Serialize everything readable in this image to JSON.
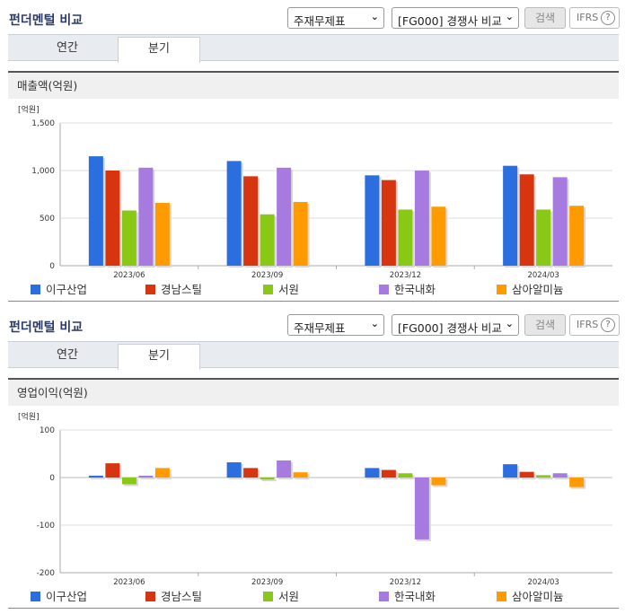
{
  "header": {
    "title": "펀더멘털 비교",
    "statement_select": "주재무제표",
    "compare_select": "[FG000] 경쟁사 비교",
    "search_label": "검색",
    "ifrs_label": "IFRS",
    "help_glyph": "?"
  },
  "tabs": [
    "연간",
    "분기"
  ],
  "active_tab": "분기",
  "colors": [
    "#2a6ee0",
    "#d6350f",
    "#8ac816",
    "#a77ae0",
    "#ff9a00"
  ],
  "chart_data": [
    {
      "type": "bar",
      "title": "매출액(억원)",
      "unit": "[억원]",
      "categories": [
        "2023/06",
        "2023/09",
        "2023/12",
        "2024/03"
      ],
      "series": [
        {
          "name": "이구산업",
          "values": [
            1150,
            1100,
            950,
            1050
          ]
        },
        {
          "name": "경남스틸",
          "values": [
            1000,
            940,
            900,
            960
          ]
        },
        {
          "name": "서원",
          "values": [
            580,
            540,
            590,
            590
          ]
        },
        {
          "name": "한국내화",
          "values": [
            1030,
            1030,
            1000,
            930
          ]
        },
        {
          "name": "삼아알미늄",
          "values": [
            660,
            670,
            620,
            630
          ]
        }
      ],
      "ylim": [
        0,
        1500
      ],
      "yticks": [
        "0",
        "500",
        "1,000",
        "1,500"
      ],
      "ytick_values": [
        0,
        500,
        1000,
        1500
      ],
      "grid": true,
      "legend": "bottom"
    },
    {
      "type": "bar",
      "title": "영업이익(억원)",
      "unit": "[억원]",
      "categories": [
        "2023/06",
        "2023/09",
        "2023/12",
        "2024/03"
      ],
      "series": [
        {
          "name": "이구산업",
          "values": [
            4,
            32,
            20,
            28
          ]
        },
        {
          "name": "경남스틸",
          "values": [
            30,
            20,
            16,
            12
          ]
        },
        {
          "name": "서원",
          "values": [
            -14,
            -4,
            9,
            5
          ]
        },
        {
          "name": "한국내화",
          "values": [
            4,
            36,
            -130,
            9
          ]
        },
        {
          "name": "삼아알미늄",
          "values": [
            20,
            11,
            -16,
            -20
          ]
        }
      ],
      "ylim": [
        -200,
        100
      ],
      "yticks": [
        "-200",
        "-100",
        "0",
        "100"
      ],
      "ytick_values": [
        -200,
        -100,
        0,
        100
      ],
      "grid": true,
      "legend": "bottom"
    }
  ]
}
